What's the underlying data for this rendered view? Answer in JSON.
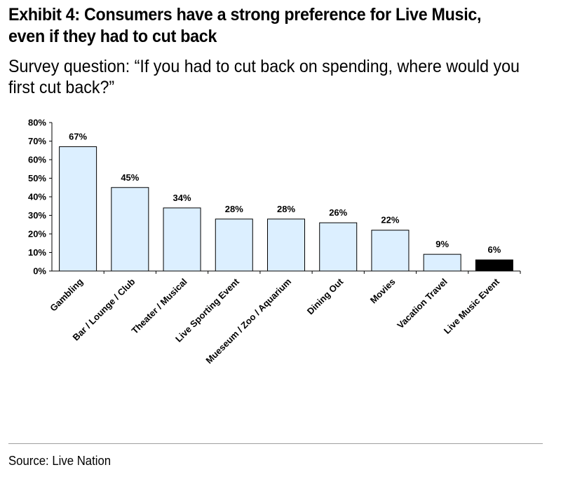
{
  "header": {
    "title": "Exhibit 4: Consumers have a strong preference for Live Music, even if they had to cut back",
    "subtitle": "Survey question: “If you had to cut back on spending, where would you first cut back?”"
  },
  "footer": {
    "source": "Source: Live Nation"
  },
  "colors": {
    "bar_fill": "#dcefff",
    "highlight_fill": "#000000",
    "bar_stroke": "#000000"
  },
  "chart_data": {
    "type": "bar",
    "categories": [
      "Gambling",
      "Bar / Lounge / Club",
      "Theater / Musical",
      "Live Sporting Event",
      "Mueseum / Zoo / Aquarium",
      "Dining Out",
      "Movies",
      "Vacation Travel",
      "Live Music Event"
    ],
    "values": [
      67,
      45,
      34,
      28,
      28,
      26,
      22,
      9,
      6
    ],
    "data_labels": [
      "67%",
      "45%",
      "34%",
      "28%",
      "28%",
      "26%",
      "22%",
      "9%",
      "6%"
    ],
    "highlight": "Live Music Event",
    "yticks": [
      "0%",
      "10%",
      "20%",
      "30%",
      "40%",
      "50%",
      "60%",
      "70%",
      "80%"
    ],
    "ylim": [
      0,
      80
    ],
    "grid": false,
    "legend": "none"
  }
}
